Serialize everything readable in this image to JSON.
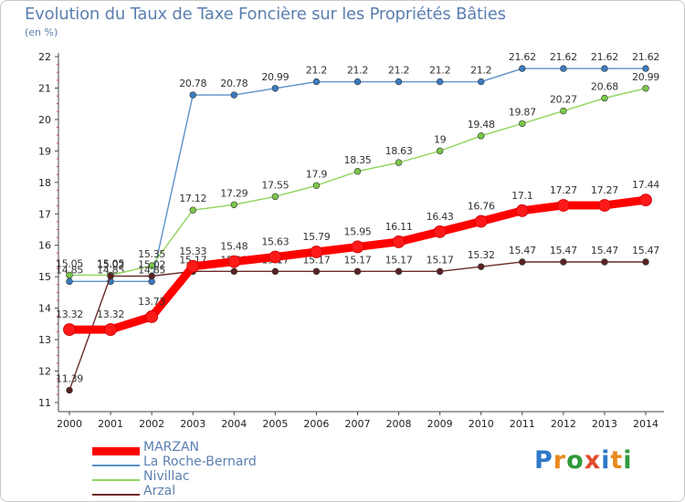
{
  "header": {
    "title": "Evolution du Taux de Taxe Foncière sur les Propriétés Bâties",
    "unit": "(en %)"
  },
  "brand": {
    "text": "Proxiti",
    "letters": [
      "P",
      "r",
      "o",
      "x",
      "i",
      "t",
      "i"
    ],
    "colors": [
      "#2f78c9",
      "#e8891c",
      "#2f9a3a",
      "#e14b2b",
      "#2f78c9",
      "#e8891c",
      "#2f9a3a"
    ]
  },
  "chart_data": {
    "type": "line",
    "title": "Evolution du Taux de Taxe Foncière sur les Propriétés Bâties",
    "ylabel": "(en %)",
    "xlabel": "",
    "ylim": [
      11,
      22
    ],
    "yticks": [
      "11",
      "12",
      "13",
      "14",
      "15",
      "16",
      "17",
      "18",
      "19",
      "20",
      "21",
      "22"
    ],
    "categories": [
      "2000",
      "2001",
      "2002",
      "2003",
      "2004",
      "2005",
      "2006",
      "2007",
      "2008",
      "2009",
      "2010",
      "2011",
      "2012",
      "2013",
      "2014"
    ],
    "grid": false,
    "legend_position": "bottom-left",
    "series": [
      {
        "name": "La Roche-Bernard",
        "color": "#5b92c8",
        "marker": "#3a7bc0",
        "values": [
          14.85,
          14.85,
          14.85,
          20.78,
          20.78,
          20.99,
          21.2,
          21.2,
          21.2,
          21.2,
          21.2,
          21.62,
          21.62,
          21.62,
          21.62
        ],
        "labels": [
          "14.85",
          "14.85",
          "14.85",
          "20.78",
          "20.78",
          "20.99",
          "21.2",
          "21.2",
          "21.2",
          "21.2",
          "21.2",
          "21.62",
          "21.62",
          "21.62",
          "21.62"
        ]
      },
      {
        "name": "Nivillac",
        "color": "#8fd45a",
        "marker": "#7ac74a",
        "values": [
          15.05,
          15.05,
          15.35,
          17.12,
          17.29,
          17.55,
          17.9,
          18.35,
          18.63,
          19.0,
          19.48,
          19.87,
          20.27,
          20.68,
          20.99
        ],
        "labels": [
          "15.05",
          "15.05",
          "15.35",
          "17.12",
          "17.29",
          "17.55",
          "17.9",
          "18.35",
          "18.63",
          "19",
          "19.48",
          "19.87",
          "20.27",
          "20.68",
          "20.99"
        ]
      },
      {
        "name": "Arzal",
        "color": "#6b2a2a",
        "marker": "#5a2222",
        "values": [
          11.39,
          15.02,
          15.02,
          15.17,
          15.17,
          15.17,
          15.17,
          15.17,
          15.17,
          15.17,
          15.32,
          15.47,
          15.47,
          15.47,
          15.47
        ],
        "labels": [
          "11.39",
          "15.02",
          "15.02",
          "15.17",
          "15.17",
          "15.17",
          "15.17",
          "15.17",
          "15.17",
          "15.17",
          "15.32",
          "15.47",
          "15.47",
          "15.47",
          "15.47"
        ]
      },
      {
        "name": "MARZAN",
        "color": "#ff0000",
        "marker": "#ff1a1a",
        "values": [
          13.32,
          13.32,
          13.73,
          15.33,
          15.48,
          15.63,
          15.79,
          15.95,
          16.11,
          16.43,
          16.76,
          17.1,
          17.27,
          17.27,
          17.44
        ],
        "labels": [
          "13.32",
          "13.32",
          "13.73",
          "15.33",
          "15.48",
          "15.63",
          "15.79",
          "15.95",
          "16.11",
          "16.43",
          "16.76",
          "17.1",
          "17.27",
          "17.27",
          "17.44"
        ]
      }
    ],
    "legend_order": [
      "MARZAN",
      "La Roche-Bernard",
      "Nivillac",
      "Arzal"
    ]
  }
}
